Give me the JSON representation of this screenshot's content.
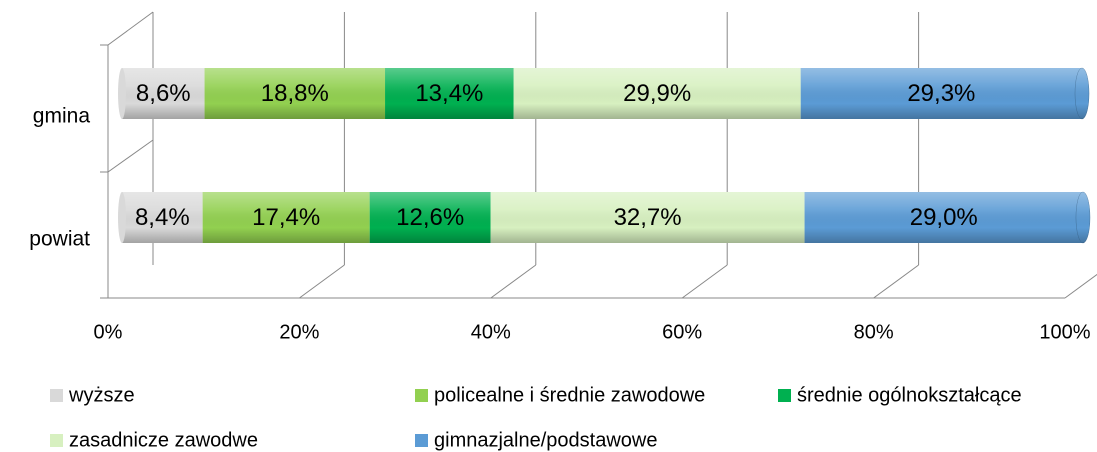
{
  "chart_data": {
    "type": "bar",
    "orientation": "horizontal",
    "stacked": true,
    "categories": [
      "gmina",
      "powiat"
    ],
    "series": [
      {
        "name": "wyższe",
        "color": "#d9d9d9",
        "values": [
          8.6,
          8.4
        ],
        "value_labels": [
          "8,6%",
          "8,4%"
        ]
      },
      {
        "name": "policealne i średnie zawodowe",
        "color": "#92d050",
        "values": [
          18.8,
          17.4
        ],
        "value_labels": [
          "18,8%",
          "17,4%"
        ]
      },
      {
        "name": "średnie ogólnokształcące",
        "color": "#00b050",
        "values": [
          13.4,
          12.6
        ],
        "value_labels": [
          "13,4%",
          "12,6%"
        ]
      },
      {
        "name": "zasadnicze zawodwe",
        "color": "#d7f0c0",
        "values": [
          29.9,
          32.7
        ],
        "value_labels": [
          "29,9%",
          "32,7%"
        ]
      },
      {
        "name": "gimnazjalne/podstawowe",
        "color": "#5b9bd5",
        "values": [
          29.3,
          29.0
        ],
        "value_labels": [
          "29,3%",
          "29,0%"
        ]
      }
    ],
    "xlim": [
      0,
      100
    ],
    "xticks": [
      {
        "value": 0,
        "label": "0%"
      },
      {
        "value": 20,
        "label": "20%"
      },
      {
        "value": 40,
        "label": "40%"
      },
      {
        "value": 60,
        "label": "60%"
      },
      {
        "value": 80,
        "label": "80%"
      },
      {
        "value": 100,
        "label": "100%"
      }
    ],
    "grid": true,
    "legend": "bottom"
  }
}
